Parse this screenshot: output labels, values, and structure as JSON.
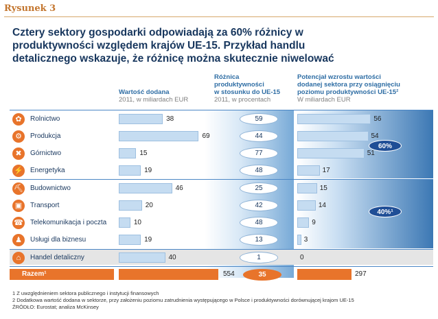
{
  "figure_label": "Rysunek 3",
  "title_lines": [
    "Cztery sektory gospodarki odpowiadają za 60% różnicy w",
    "produktywności względem krajów UE-15. Przykład handlu",
    "detalicznego wskazuje, że różnicę można skutecznie niwelować"
  ],
  "columns": {
    "value_added": {
      "title": "Wartość dodana",
      "sub": "2011, w miliardach EUR"
    },
    "gap": {
      "title_lines": [
        "Różnica",
        "produktywności",
        "w stosunku do UE-15"
      ],
      "sub": "2011, w procentach"
    },
    "potential": {
      "title_lines": [
        "Potencjał wzrostu wartości",
        "dodanej sektora przy osiągnięciu",
        "poziomu produktywności UE-15²"
      ],
      "sub": "W miliardach EUR"
    }
  },
  "group_labels": [
    "60%",
    "40%¹"
  ],
  "chart_data": {
    "type": "table",
    "rows": [
      {
        "name": "Rolnictwo",
        "icon": "tractor-icon",
        "value_added": 38,
        "gap": 59,
        "potential": 56,
        "group": 1
      },
      {
        "name": "Produkcja",
        "icon": "factory-icon",
        "value_added": 69,
        "gap": 44,
        "potential": 54,
        "group": 1
      },
      {
        "name": "Górnictwo",
        "icon": "pickaxe-icon",
        "value_added": 15,
        "gap": 77,
        "potential": 51,
        "group": 1
      },
      {
        "name": "Energetyka",
        "icon": "lightning-icon",
        "value_added": 19,
        "gap": 48,
        "potential": 17,
        "group": 1
      },
      {
        "name": "Budownictwo",
        "icon": "trowel-icon",
        "value_added": 46,
        "gap": 25,
        "potential": 15,
        "group": 2
      },
      {
        "name": "Transport",
        "icon": "train-icon",
        "value_added": 20,
        "gap": 42,
        "potential": 14,
        "group": 2
      },
      {
        "name": "Telekomunikacja i poczta",
        "icon": "phone-icon",
        "value_added": 10,
        "gap": 48,
        "potential": 9,
        "group": 2
      },
      {
        "name": "Usługi dla biznesu",
        "icon": "person-icon",
        "value_added": 19,
        "gap": 13,
        "potential": 3,
        "group": 2
      },
      {
        "name": "Handel detaliczny",
        "icon": "basket-icon",
        "value_added": 40,
        "gap": 1,
        "potential": 0,
        "group": 3
      }
    ],
    "total": {
      "name": "Razem¹",
      "value_added": 554,
      "gap": 35,
      "potential": 297
    },
    "value_added_scale_max": 80,
    "potential_scale_max": 60
  },
  "footnotes": [
    "1 Z uwzględnieniem sektora publicznego i instytucji finansowych",
    "2 Dodatkowa wartość dodana w sektorze, przy założeniu poziomu zatrudnienia występującego w Polsce i produktywności dorównującej krajom UE-15",
    "ŹRÓDŁO: Eurostat; analiza McKinsey"
  ],
  "colors": {
    "accent": "#e8742b",
    "navy": "#1f4e96",
    "bar": "#c5dcf1"
  }
}
